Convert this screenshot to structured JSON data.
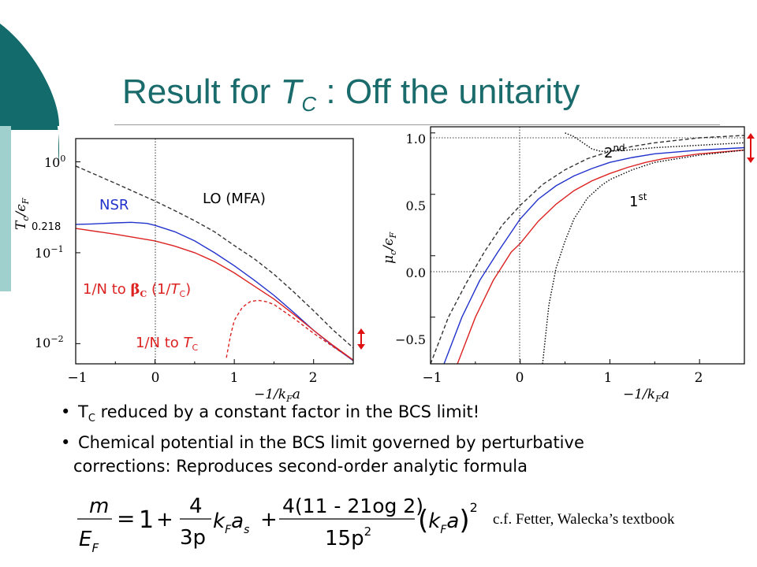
{
  "slide": {
    "title_prefix": "Result for ",
    "title_var": "T",
    "title_sub": "C",
    "title_suffix": " :  Off the unitarity"
  },
  "colors": {
    "teal_dark": "#136b6b",
    "teal_light": "#9fd0cd",
    "title": "#1a6b6b",
    "nsr_blue": "#2233cc",
    "red": "#dd2222",
    "dashed_black": "#333333"
  },
  "chart_data": [
    {
      "type": "line",
      "yscale": "log",
      "ylabel": "T_c/ε_F",
      "xlabel": "−1/k_F a",
      "xlim": [
        -1,
        2.5
      ],
      "ylim": [
        0.006,
        1.8
      ],
      "x_ticks": [
        "−1",
        "0",
        "1",
        "2"
      ],
      "y_ticks": [
        "10^0",
        "10^−1",
        "10^−2"
      ],
      "vline_x": 0,
      "annotations": {
        "nsr": "NSR",
        "lo": "LO (MFA)",
        "value_0218": "0.218",
        "beta_label_pre": "1/N to ",
        "beta_label_beta": "β",
        "beta_label_sub": "C",
        "beta_label_post": " (1/",
        "beta_label_T": "T",
        "beta_label_Tsub": "C",
        "beta_label_end": ")",
        "tc_label_pre": "1/N to ",
        "tc_label_T": "T",
        "tc_label_sub": "C"
      },
      "series": [
        {
          "x": [
            -1,
            -0.5,
            0,
            0.25,
            0.5,
            0.75,
            1,
            1.25,
            1.5,
            1.75,
            2,
            2.25,
            2.5
          ],
          "values": [
            0.9,
            0.58,
            0.37,
            0.29,
            0.225,
            0.17,
            0.12,
            0.086,
            0.058,
            0.037,
            0.023,
            0.014,
            0.009
          ]
        },
        {
          "x": [
            -1,
            -0.8,
            -0.5,
            -0.3,
            -0.1,
            0,
            0.25,
            0.5,
            0.75,
            1,
            1.25,
            1.5,
            1.75,
            2,
            2.25,
            2.5
          ],
          "values": [
            0.205,
            0.207,
            0.213,
            0.216,
            0.21,
            0.2,
            0.17,
            0.135,
            0.1,
            0.072,
            0.05,
            0.034,
            0.022,
            0.014,
            0.0093,
            0.0065
          ]
        },
        {
          "x": [
            -1,
            -0.5,
            0,
            0.25,
            0.5,
            0.75,
            1,
            1.25,
            1.5,
            1.75,
            2,
            2.25,
            2.5
          ],
          "values": [
            0.185,
            0.16,
            0.135,
            0.118,
            0.1,
            0.08,
            0.06,
            0.043,
            0.031,
            0.021,
            0.014,
            0.0095,
            0.0066
          ]
        },
        {
          "x": [
            0.9,
            0.95,
            1.0,
            1.1,
            1.2,
            1.3,
            1.4,
            1.5,
            1.75,
            2,
            2.25,
            2.5
          ],
          "values": [
            0.007,
            0.012,
            0.018,
            0.025,
            0.029,
            0.03,
            0.029,
            0.027,
            0.019,
            0.013,
            0.0092,
            0.0066
          ]
        }
      ]
    },
    {
      "type": "line",
      "ylabel": "μ_c/ε_F",
      "xlabel": "−1/k_F a",
      "xlim": [
        -1,
        2.5
      ],
      "ylim": [
        -0.88,
        1.05
      ],
      "x_ticks": [
        "−1",
        "0",
        "1",
        "2"
      ],
      "y_ticks": [
        "1.0",
        "0.5",
        "0.0",
        "−0.5"
      ],
      "vline_x": 0,
      "hline_y": 0,
      "hline2_y": 1.0,
      "annotations": {
        "second": "2",
        "second_sup": "nd",
        "first": "1",
        "first_sup": "st"
      },
      "series": [
        {
          "x": [
            -1,
            -0.8,
            -0.6,
            -0.4,
            -0.2,
            0,
            0.25,
            0.5,
            0.75,
            1,
            1.25,
            1.5,
            2,
            2.5
          ],
          "values": [
            -0.88,
            -0.5,
            -0.22,
            0.03,
            0.25,
            0.41,
            0.58,
            0.7,
            0.79,
            0.85,
            0.89,
            0.92,
            0.96,
            0.98
          ]
        },
        {
          "x": [
            -0.85,
            -0.65,
            -0.45,
            -0.25,
            0,
            0.2,
            0.4,
            0.6,
            0.8,
            1,
            1.25,
            1.5,
            2,
            2.5
          ],
          "values": [
            -0.88,
            -0.5,
            -0.2,
            0.03,
            0.3,
            0.46,
            0.57,
            0.65,
            0.71,
            0.76,
            0.8,
            0.83,
            0.86,
            0.88
          ]
        },
        {
          "x": [
            -0.7,
            -0.5,
            -0.3,
            -0.1,
            0,
            0.2,
            0.4,
            0.6,
            0.8,
            1,
            1.2,
            1.4,
            1.6,
            1.8,
            2,
            2.25,
            2.5
          ],
          "values": [
            -0.88,
            -0.5,
            -0.2,
            0.03,
            0.1,
            0.28,
            0.42,
            0.53,
            0.61,
            0.67,
            0.72,
            0.76,
            0.79,
            0.81,
            0.83,
            0.845,
            0.86
          ]
        },
        {
          "x": [
            0.25,
            0.32,
            0.4,
            0.5,
            0.6,
            0.75,
            0.9,
            1,
            1.25,
            1.5,
            2,
            2.5
          ],
          "values": [
            -0.88,
            -0.4,
            -0.1,
            0.12,
            0.3,
            0.47,
            0.57,
            0.62,
            0.7,
            0.76,
            0.82,
            0.86
          ]
        },
        {
          "x": [
            0.5,
            0.6,
            0.7,
            0.8,
            0.9,
            1,
            1.2,
            1.5,
            2,
            2.5
          ],
          "values": [
            1.0,
            0.97,
            0.92,
            0.87,
            0.85,
            0.85,
            0.86,
            0.88,
            0.9,
            0.92
          ]
        }
      ]
    }
  ],
  "bullets": [
    {
      "symbol": "•",
      "T": "T",
      "T_sub": "C",
      "text": " reduced by a constant factor in the BCS limit!"
    },
    {
      "symbol": "•",
      "line1": "Chemical potential in the BCS limit governed by perturbative",
      "line2": "corrections: Reproduces second-order analytic formula"
    }
  ],
  "formula": {
    "lhs_num": "m",
    "lhs_den": "E",
    "lhs_den_sub": "F",
    "eq": "=",
    "one": "1",
    "plus": "+",
    "frac1_num": "4",
    "frac1_den": "3p",
    "k": "k",
    "k_sub": "F",
    "a": "a",
    "a_sub": "s",
    "plus2": "+",
    "frac2_num": "4(11 -  21og 2)",
    "frac2_den": "15p",
    "frac2_den_sup": "2",
    "paren_open": "(",
    "paren_k": "k",
    "paren_k_sub": "F",
    "paren_a": "a",
    "paren_close": ")",
    "paren_sup": "2"
  },
  "note": "c.f. Fetter, Walecka’s textbook"
}
